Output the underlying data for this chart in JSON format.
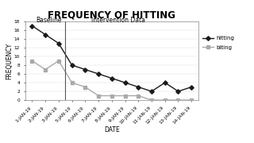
{
  "title": "FREQUENCY OF HITTING",
  "xlabel": "DATE",
  "ylabel": "FREQUENCY",
  "baseline_label": "Baseline",
  "intervention_label": "Intervention Data",
  "x_labels": [
    "1-JAN-19",
    "2-JAN-19",
    "3-JAN-19",
    "5-JAN-19",
    "6-JAN-19",
    "7-JAN-19",
    "8-JAN-19",
    "9-JAN-19",
    "10-JAN-19",
    "11-JAN-19",
    "12-JAN-19",
    "13-JAN-19",
    "14-JAN-19"
  ],
  "hitting": [
    17,
    15,
    13,
    8,
    7,
    6,
    5,
    4,
    3,
    2,
    4,
    2,
    3
  ],
  "biting": [
    9,
    7,
    9,
    4,
    3,
    1,
    1,
    1,
    1,
    0,
    0,
    0,
    0
  ],
  "ylim": [
    0,
    18
  ],
  "yticks": [
    0,
    2,
    4,
    6,
    8,
    10,
    12,
    14,
    16,
    18
  ],
  "hitting_color": "#1a1a1a",
  "biting_color": "#aaaaaa",
  "bg_color": "#ffffff",
  "plot_bg": "#ffffff",
  "vline_color": "#555555",
  "title_fontsize": 8.5,
  "label_fontsize": 5.5,
  "tick_fontsize": 4.2,
  "legend_fontsize": 5.0,
  "phase_fontsize": 5.5
}
